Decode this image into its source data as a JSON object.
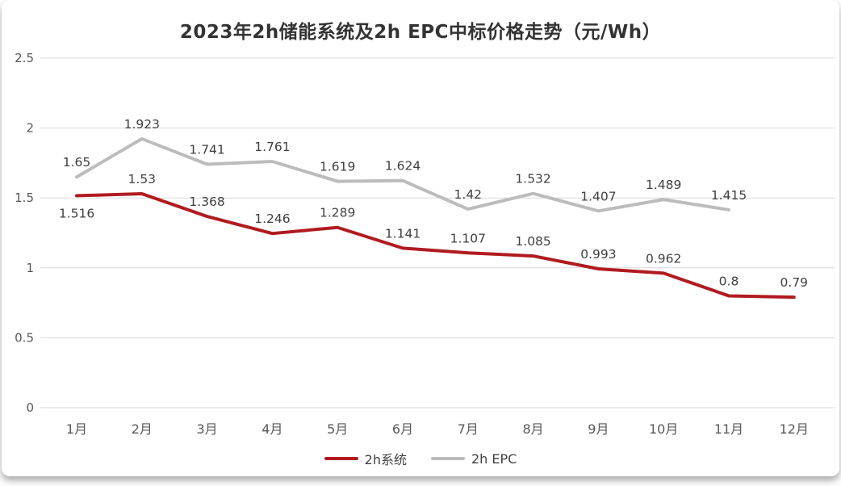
{
  "chart_data": {
    "type": "line",
    "title": "2023年2h储能系统及2h EPC中标价格走势（元/Wh）",
    "xlabel": "",
    "ylabel": "",
    "categories": [
      "1月",
      "2月",
      "3月",
      "4月",
      "5月",
      "6月",
      "7月",
      "8月",
      "9月",
      "10月",
      "11月",
      "12月"
    ],
    "series": [
      {
        "name": "2h系统",
        "color": "#b01b20",
        "values": [
          1.516,
          1.53,
          1.368,
          1.246,
          1.289,
          1.141,
          1.107,
          1.085,
          0.993,
          0.962,
          0.8,
          0.79
        ],
        "label_positions": [
          "below",
          "above",
          "above",
          "above",
          "above",
          "above",
          "above",
          "above",
          "above",
          "above",
          "above",
          "above"
        ]
      },
      {
        "name": "2h EPC",
        "color": "#bcbcbc",
        "values": [
          1.65,
          1.923,
          1.741,
          1.761,
          1.619,
          1.624,
          1.42,
          1.532,
          1.407,
          1.489,
          1.415
        ],
        "label_positions": [
          "above",
          "above",
          "above",
          "above",
          "above",
          "above",
          "above",
          "above",
          "above",
          "above",
          "above"
        ]
      }
    ],
    "ylim": [
      0,
      2.5
    ],
    "yticks": [
      0,
      0.5,
      1,
      1.5,
      2,
      2.5
    ],
    "ytick_labels": [
      "0",
      "0.5",
      "1",
      "1.5",
      "2",
      "2.5"
    ],
    "grid": true,
    "legend_position": "bottom",
    "label_color": "#404040",
    "axis_label_color": "#595959",
    "gridline_color": "#d9d9d9"
  }
}
